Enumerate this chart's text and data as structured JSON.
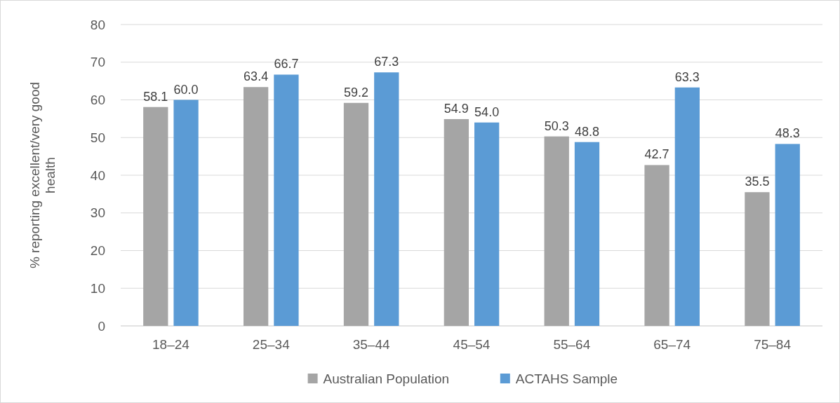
{
  "chart_data": {
    "type": "bar",
    "ylabel": "% reporting excellent/very good health",
    "categories": [
      "18–24",
      "25–34",
      "35–44",
      "45–54",
      "55–64",
      "65–74",
      "75–84"
    ],
    "series": [
      {
        "name": "Australian Population",
        "color": "#a5a5a5",
        "values": [
          58.1,
          63.4,
          59.2,
          54.9,
          50.3,
          42.7,
          35.5
        ],
        "value_labels": [
          "58.1",
          "63.4",
          "59.2",
          "54.9",
          "50.3",
          "42.7",
          "35.5"
        ]
      },
      {
        "name": "ACTAHS Sample",
        "color": "#5b9bd5",
        "values": [
          60.0,
          66.7,
          67.3,
          54.0,
          48.8,
          63.3,
          48.3
        ],
        "value_labels": [
          "60.0",
          "66.7",
          "67.3",
          "54.0",
          "48.8",
          "63.3",
          "48.3"
        ]
      }
    ],
    "ylim": [
      0,
      80
    ],
    "yticks": [
      0,
      10,
      20,
      30,
      40,
      50,
      60,
      70,
      80
    ],
    "grid": "y",
    "legend": "bottom"
  }
}
